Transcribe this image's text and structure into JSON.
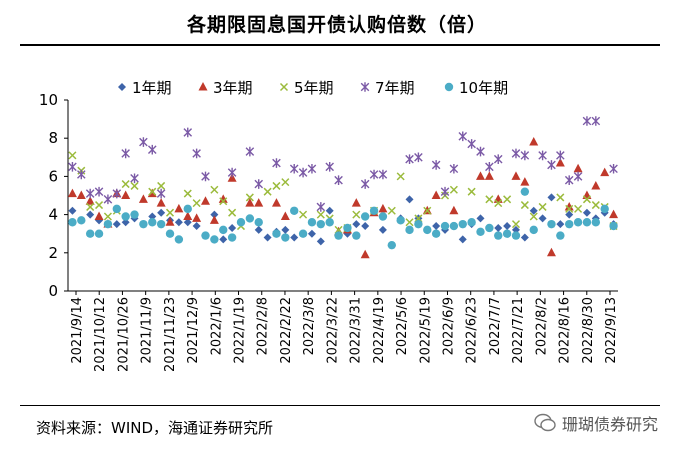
{
  "header": {
    "title": "各期限固息国开债认购倍数（倍）"
  },
  "footer": {
    "source": "资料来源：WIND，海通证券研究所",
    "watermark": "珊瑚债券研究"
  },
  "colors": {
    "1y": "#3e64a9",
    "3y": "#c0392b",
    "5y": "#9bbb3c",
    "7y": "#7b5aa6",
    "10y": "#4bacc6",
    "axis": "#000000"
  },
  "chart_data": {
    "type": "scatter",
    "title": "各期限固息国开债认购倍数（倍）",
    "ylim": [
      0,
      10
    ],
    "yticks": [
      0,
      2,
      4,
      6,
      8,
      10
    ],
    "xlabels": [
      "2021/9/14",
      "2021/10/12",
      "2021/10/26",
      "2021/11/9",
      "2021/11/23",
      "2021/12/9",
      "2022/1/6",
      "2022/1/19",
      "2022/2/8",
      "2022/2/22",
      "2022/3/8",
      "2022/3/22",
      "2022/3/31",
      "2022/4/19",
      "2022/5/6",
      "2022/5/19",
      "2022/6/9",
      "2022/6/23",
      "2022/7/7",
      "2022/7/21",
      "2022/8/2",
      "2022/8/16",
      "2022/8/30",
      "2022/9/13"
    ],
    "n_points": 62,
    "legend_position": "top",
    "series": [
      {
        "name": "1年期",
        "key": "1y",
        "marker": "diamond",
        "values": [
          4.2,
          null,
          4.0,
          3.7,
          null,
          3.5,
          3.6,
          3.8,
          null,
          3.9,
          4.1,
          3.7,
          3.6,
          3.6,
          3.4,
          null,
          4.0,
          2.7,
          3.3,
          3.6,
          null,
          3.2,
          2.8,
          3.1,
          3.2,
          2.8,
          3.0,
          3.0,
          2.6,
          4.2,
          null,
          3.0,
          3.5,
          3.4,
          null,
          3.2,
          null,
          3.8,
          4.8,
          3.8,
          null,
          3.4,
          3.2,
          null,
          2.7,
          3.5,
          3.8,
          null,
          3.3,
          3.4,
          3.2,
          2.8,
          4.2,
          3.8,
          4.9,
          3.5,
          4.0,
          3.6,
          4.1,
          3.8,
          4.1,
          3.5
        ]
      },
      {
        "name": "3年期",
        "key": "3y",
        "marker": "triangle",
        "values": [
          5.1,
          5.0,
          4.7,
          3.9,
          3.5,
          5.1,
          5.0,
          null,
          4.8,
          5.1,
          4.6,
          3.6,
          4.3,
          3.9,
          3.8,
          4.7,
          3.7,
          4.8,
          5.9,
          null,
          4.6,
          4.6,
          null,
          4.6,
          3.9,
          null,
          null,
          null,
          null,
          null,
          3.1,
          3.2,
          4.6,
          1.9,
          4.1,
          4.3,
          null,
          null,
          null,
          null,
          4.2,
          5.0,
          null,
          4.2,
          null,
          null,
          6.0,
          6.0,
          4.8,
          null,
          6.0,
          5.7,
          7.8,
          null,
          2.0,
          6.7,
          4.4,
          6.4,
          5.0,
          5.5,
          6.2,
          4.0
        ]
      },
      {
        "name": "5年期",
        "key": "5y",
        "marker": "x",
        "values": [
          7.1,
          6.3,
          4.4,
          4.5,
          3.9,
          4.2,
          5.6,
          5.5,
          null,
          5.2,
          5.5,
          4.1,
          null,
          5.1,
          4.6,
          null,
          5.3,
          4.7,
          4.1,
          3.4,
          4.9,
          null,
          5.2,
          5.5,
          5.7,
          null,
          4.0,
          null,
          4.0,
          3.8,
          3.2,
          3.3,
          4.0,
          null,
          4.2,
          null,
          4.2,
          6.0,
          3.6,
          3.8,
          4.2,
          null,
          5.0,
          5.3,
          null,
          5.2,
          null,
          4.8,
          4.6,
          4.8,
          3.5,
          4.5,
          3.9,
          4.4,
          null,
          4.9,
          4.3,
          4.3,
          4.8,
          4.5,
          4.4,
          3.4
        ]
      },
      {
        "name": "7年期",
        "key": "7y",
        "marker": "star",
        "values": [
          6.5,
          6.1,
          5.1,
          5.2,
          4.8,
          5.1,
          7.2,
          5.9,
          7.8,
          7.4,
          5.1,
          null,
          null,
          8.3,
          7.2,
          6.0,
          null,
          null,
          6.2,
          null,
          7.3,
          5.6,
          null,
          6.7,
          null,
          6.4,
          6.2,
          6.4,
          4.4,
          6.5,
          5.8,
          null,
          null,
          5.6,
          6.1,
          6.1,
          null,
          null,
          6.9,
          7.0,
          null,
          6.6,
          5.2,
          6.4,
          8.1,
          7.7,
          7.3,
          6.5,
          6.9,
          null,
          7.2,
          7.1,
          null,
          7.1,
          6.6,
          7.1,
          5.8,
          6.0,
          8.9,
          8.9,
          null,
          6.4
        ]
      },
      {
        "name": "10年期",
        "key": "10y",
        "marker": "circle",
        "values": [
          3.6,
          3.7,
          3.0,
          3.0,
          3.5,
          4.3,
          3.9,
          4.0,
          3.5,
          3.6,
          3.5,
          3.0,
          2.7,
          4.3,
          null,
          2.9,
          2.7,
          3.2,
          2.8,
          3.6,
          3.8,
          3.6,
          null,
          3.0,
          2.8,
          4.2,
          3.0,
          3.6,
          3.5,
          3.6,
          2.9,
          3.3,
          2.9,
          3.9,
          4.2,
          3.9,
          2.4,
          3.7,
          3.2,
          3.5,
          3.2,
          3.0,
          3.4,
          3.4,
          3.5,
          3.6,
          3.1,
          3.3,
          2.9,
          3.0,
          2.9,
          5.2,
          3.2,
          null,
          3.5,
          2.9,
          3.5,
          3.6,
          3.6,
          3.6,
          4.3,
          3.4
        ]
      }
    ]
  }
}
